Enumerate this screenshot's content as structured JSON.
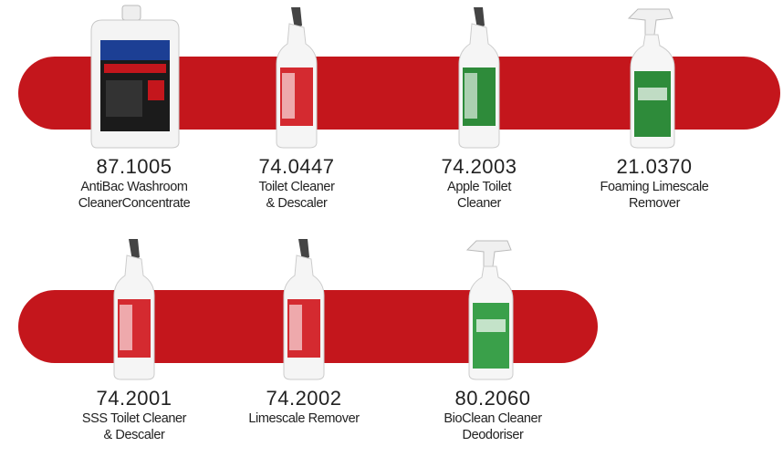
{
  "rows": [
    {
      "products": [
        {
          "code": "87.1005",
          "name": [
            "AntiBac Washroom",
            "CleanerConcentrate"
          ]
        },
        {
          "code": "74.0447",
          "name": [
            "Toilet Cleaner",
            "& Descaler"
          ]
        },
        {
          "code": "74.2003",
          "name": [
            "Apple Toilet",
            "Cleaner"
          ]
        },
        {
          "code": "21.0370",
          "name": [
            "Foaming Limescale",
            "Remover"
          ]
        }
      ]
    },
    {
      "products": [
        {
          "code": "74.2001",
          "name": [
            "SSS Toilet Cleaner",
            "& Descaler"
          ]
        },
        {
          "code": "74.2002",
          "name": [
            "Limescale Remover"
          ]
        },
        {
          "code": "80.2060",
          "name": [
            "BioClean Cleaner",
            "Deodoriser"
          ]
        }
      ]
    }
  ]
}
